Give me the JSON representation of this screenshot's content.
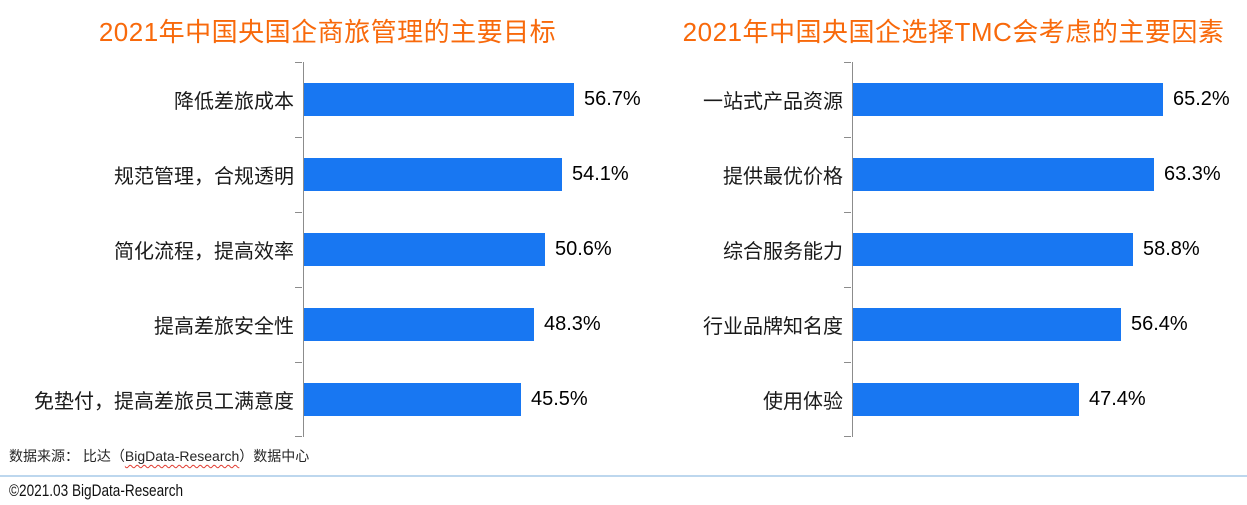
{
  "colors": {
    "title_orange": "#f8690b",
    "bar_blue": "#1877f2",
    "axis_gray": "#8c8c8c",
    "divider_light_blue": "#bdd7ee",
    "spellcheck_red": "#e03a2f"
  },
  "chart_data": [
    {
      "type": "bar",
      "orientation": "horizontal",
      "title": "2021年中国央国企商旅管理的主要目标",
      "categories": [
        "降低差旅成本",
        "规范管理，合规透明",
        "简化流程，提高效率",
        "提高差旅安全性",
        "免垫付，提高差旅员工满意度"
      ],
      "values": [
        56.7,
        54.1,
        50.6,
        48.3,
        45.5
      ],
      "value_labels": [
        "56.7%",
        "54.1%",
        "50.6%",
        "48.3%",
        "45.5%"
      ],
      "xlabel": "",
      "ylabel": "",
      "xlim": [
        0,
        70
      ],
      "grid": false,
      "legend": "none",
      "bar_color": "#1877f2",
      "data_label_position": "outside-end"
    },
    {
      "type": "bar",
      "orientation": "horizontal",
      "title": "2021年中国央国企选择TMC会考虑的主要因素",
      "categories": [
        "一站式产品资源",
        "提供最优价格",
        "综合服务能力",
        "行业品牌知名度",
        "使用体验"
      ],
      "values": [
        65.2,
        63.3,
        58.8,
        56.4,
        47.4
      ],
      "value_labels": [
        "65.2%",
        "63.3%",
        "58.8%",
        "56.4%",
        "47.4%"
      ],
      "xlabel": "",
      "ylabel": "",
      "xlim": [
        0,
        70
      ],
      "grid": false,
      "legend": "none",
      "bar_color": "#1877f2",
      "data_label_position": "outside-end"
    }
  ],
  "footer": {
    "source_prefix": "数据来源： 比达（",
    "source_word": "BigData-Research",
    "source_suffix": "）数据中心",
    "copyright": "©2021.03 BigData-Research"
  }
}
